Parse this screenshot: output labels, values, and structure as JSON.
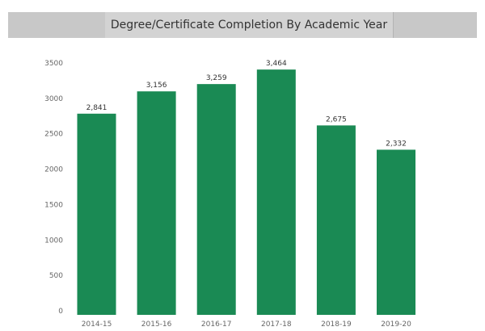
{
  "title": "Degree/Certificate Completion By Academic Year",
  "chart_data": {
    "type": "bar",
    "title": "Degree/Certificate Completion By Academic Year",
    "xlabel": "",
    "ylabel": "",
    "categories": [
      "2014-15",
      "2015-16",
      "2016-17",
      "2017-18",
      "2018-19",
      "2019-20"
    ],
    "values": [
      2841,
      3156,
      3259,
      3464,
      2675,
      2332
    ],
    "value_labels": [
      "2,841",
      "3,156",
      "3,259",
      "3,464",
      "2,675",
      "2,332"
    ],
    "ylim": [
      0,
      3500
    ],
    "yticks": [
      0,
      500,
      1000,
      1500,
      2000,
      2500,
      3000,
      3500
    ],
    "grid": false,
    "legend": "none",
    "bar_color": "#1a8a54"
  }
}
